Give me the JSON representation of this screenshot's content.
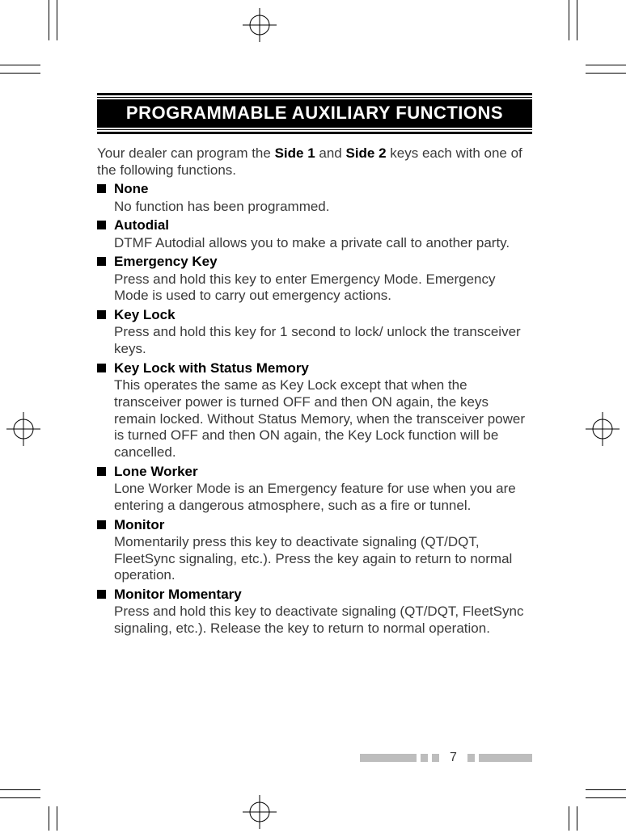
{
  "title": "PROGRAMMABLE AUXILIARY FUNCTIONS",
  "intro_pre": "Your dealer can program the ",
  "intro_b1": "Side 1",
  "intro_mid": " and ",
  "intro_b2": "Side 2",
  "intro_post": " keys each with one of the following functions.",
  "items": [
    {
      "title": "None",
      "desc": "No function has been programmed."
    },
    {
      "title": "Autodial",
      "desc": "DTMF Autodial allows you to make a private call to another party."
    },
    {
      "title": "Emergency Key",
      "desc": "Press and hold this key to enter Emergency Mode. Emergency Mode is used to carry out emergency actions."
    },
    {
      "title": "Key Lock",
      "desc": "Press and hold this key for 1 second to lock/ unlock the transceiver keys."
    },
    {
      "title": "Key Lock with Status Memory",
      "desc": "This operates the same as Key Lock except that when the transceiver power is turned OFF and then ON again, the keys remain locked. Without Status Memory, when the transceiver power is turned OFF and then ON again, the Key Lock function will be cancelled."
    },
    {
      "title": "Lone Worker",
      "desc": "Lone Worker Mode is an Emergency feature for use when you are entering a dangerous atmosphere, such as a fire or tunnel."
    },
    {
      "title": "Monitor",
      "desc": "Momentarily press this key to deactivate signaling (QT/DQT, FleetSync signaling, etc.). Press the key again to return to normal operation."
    },
    {
      "title": "Monitor Momentary",
      "desc": "Press and hold this key to deactivate signaling (QT/DQT, FleetSync signaling, etc.). Release the key to return to normal operation."
    }
  ],
  "page_number": "7",
  "colors": {
    "text": "#3a3a3a",
    "bar": "#bdbdbd"
  }
}
